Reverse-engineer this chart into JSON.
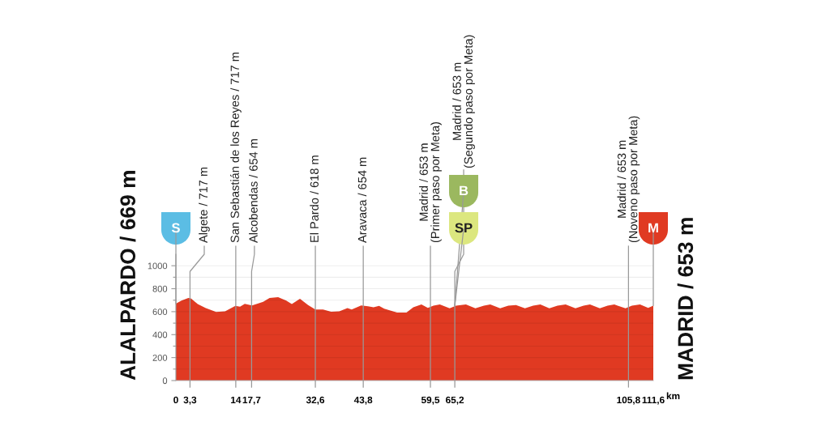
{
  "chart_data": {
    "type": "area",
    "color": "#e03a22",
    "x": [
      0,
      1.3,
      2.9,
      3.5,
      5.1,
      7.0,
      9.4,
      11.5,
      13.9,
      15.0,
      16.1,
      17.8,
      20.4,
      21.9,
      23.9,
      25.8,
      27.1,
      29.0,
      30.9,
      32.6,
      34.4,
      36.3,
      38.2,
      40.1,
      41.1,
      43.3,
      44.9,
      46.2,
      47.5,
      48.7,
      51.7,
      53.9,
      55.5,
      57.4,
      58.9,
      60.2,
      61.7,
      64.0,
      65.5,
      67.8,
      70.0,
      72.0,
      73.5,
      75.8,
      77.7,
      79.5,
      81.6,
      83.5,
      85.2,
      87.3,
      89.2,
      91.1,
      93.4,
      95.3,
      96.8,
      99.1,
      100.9,
      102.5,
      105.1,
      106.6,
      108.5,
      110.4,
      111.6
    ],
    "values": [
      669,
      696,
      720,
      715,
      666,
      631,
      598,
      603,
      650,
      643,
      668,
      654,
      685,
      720,
      727,
      696,
      666,
      713,
      657,
      619,
      619,
      600,
      603,
      631,
      619,
      654,
      647,
      638,
      650,
      626,
      592,
      592,
      639,
      662,
      633,
      652,
      662,
      629,
      652,
      662,
      629,
      652,
      662,
      629,
      652,
      657,
      629,
      652,
      662,
      629,
      652,
      662,
      629,
      652,
      662,
      629,
      652,
      662,
      629,
      652,
      662,
      633,
      653
    ],
    "xlim": [
      0,
      111.6
    ],
    "xticks": [
      0,
      {
        "value": 3.3,
        "label": "3,3"
      },
      14,
      {
        "value": 17.7,
        "label": "17,7"
      },
      {
        "value": 32.6,
        "label": "32,6"
      },
      {
        "value": 43.8,
        "label": "43,8"
      },
      {
        "value": 59.5,
        "label": "59,5"
      },
      {
        "value": 65.2,
        "label": "65,2"
      },
      {
        "value": 105.8,
        "label": "105,8"
      },
      {
        "value": 111.6,
        "label": "111,6"
      }
    ],
    "xlabel": "km",
    "ylim": [
      0,
      1100
    ],
    "yticks": [
      0,
      {
        "value": 100,
        "label": null
      },
      200,
      {
        "value": 300,
        "label": null
      },
      400,
      {
        "value": 500,
        "label": null
      },
      600,
      {
        "value": 700,
        "label": null
      },
      800,
      {
        "value": 900,
        "label": null
      },
      1000
    ],
    "grid": "y",
    "ref_lines": [
      {
        "axis": "x",
        "value": 3.3,
        "label": "Algete / 717 m"
      },
      {
        "axis": "x",
        "value": 14,
        "label": "San Sebastián de los Reyes / 717 m"
      },
      {
        "axis": "x",
        "value": 17.7,
        "label": "Alcobendas / 654 m"
      },
      {
        "axis": "x",
        "value": 32.6,
        "label": "El Pardo / 618 m"
      },
      {
        "axis": "x",
        "value": 43.8,
        "label": "Aravaca / 654 m"
      },
      {
        "axis": "x",
        "value": 59.5,
        "label": "Madrid / 653 m\n(Primer paso por Meta)"
      },
      {
        "axis": "x",
        "value": 65.2,
        "label": "Madrid / 653 m\n(Segundo paso por Meta)"
      },
      {
        "axis": "x",
        "value": 105.8,
        "label": "Madrid / 653 m\n(Noveno paso por Meta)"
      }
    ],
    "annotations": [
      "ALALPARDO / 669 m",
      "MADRID / 653 m",
      {
        "text": "S",
        "x": 0,
        "y": 669
      },
      {
        "text": "SP",
        "x": 65.2,
        "y": 653
      },
      {
        "text": "B",
        "x": 65.2,
        "y": 653
      },
      {
        "text": "M",
        "x": 111.6,
        "y": 653
      }
    ]
  }
}
